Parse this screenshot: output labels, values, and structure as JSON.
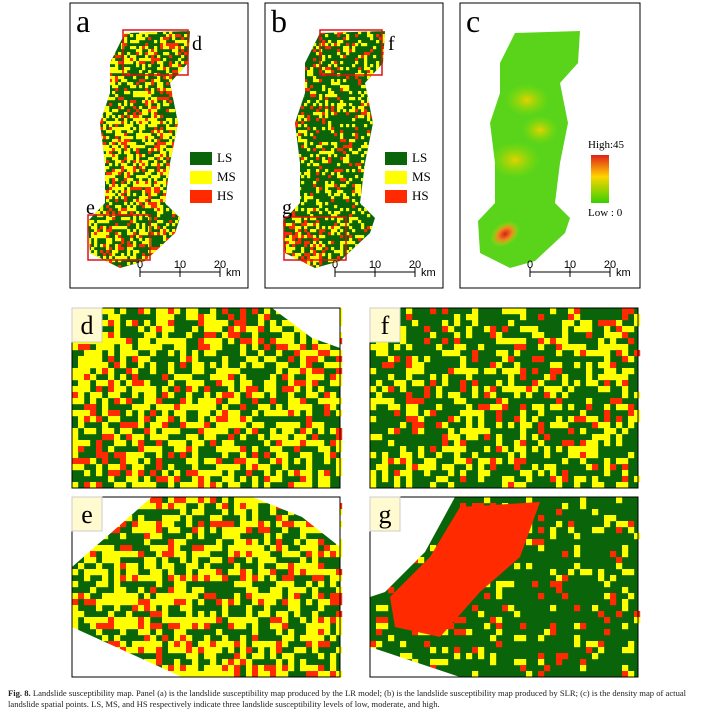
{
  "panels": [
    {
      "label": "a",
      "legend": [
        "LS",
        "MS",
        "HS"
      ],
      "insets": [
        "d",
        "e"
      ],
      "scale": [
        "0",
        "10",
        "20",
        "km"
      ]
    },
    {
      "label": "b",
      "legend": [
        "LS",
        "MS",
        "HS"
      ],
      "insets": [
        "f",
        "g"
      ],
      "scale": [
        "0",
        "10",
        "20",
        "km"
      ]
    },
    {
      "label": "c",
      "legend": [
        "High:45",
        "Low : 0"
      ],
      "scale": [
        "0",
        "10",
        "20",
        "km"
      ]
    }
  ],
  "zooms": [
    "d",
    "f",
    "e",
    "g"
  ],
  "caption": {
    "label": "Fig. 8.",
    "text": "Landslide susceptibility map. Panel (a) is the landslide susceptibility map produced by the LR model; (b) is the landslide susceptibility map produced by SLR; (c) is the density map of actual landslide spatial points. LS, MS, and HS respectively indicate three landslide susceptibility levels of low, moderate, and high."
  }
}
